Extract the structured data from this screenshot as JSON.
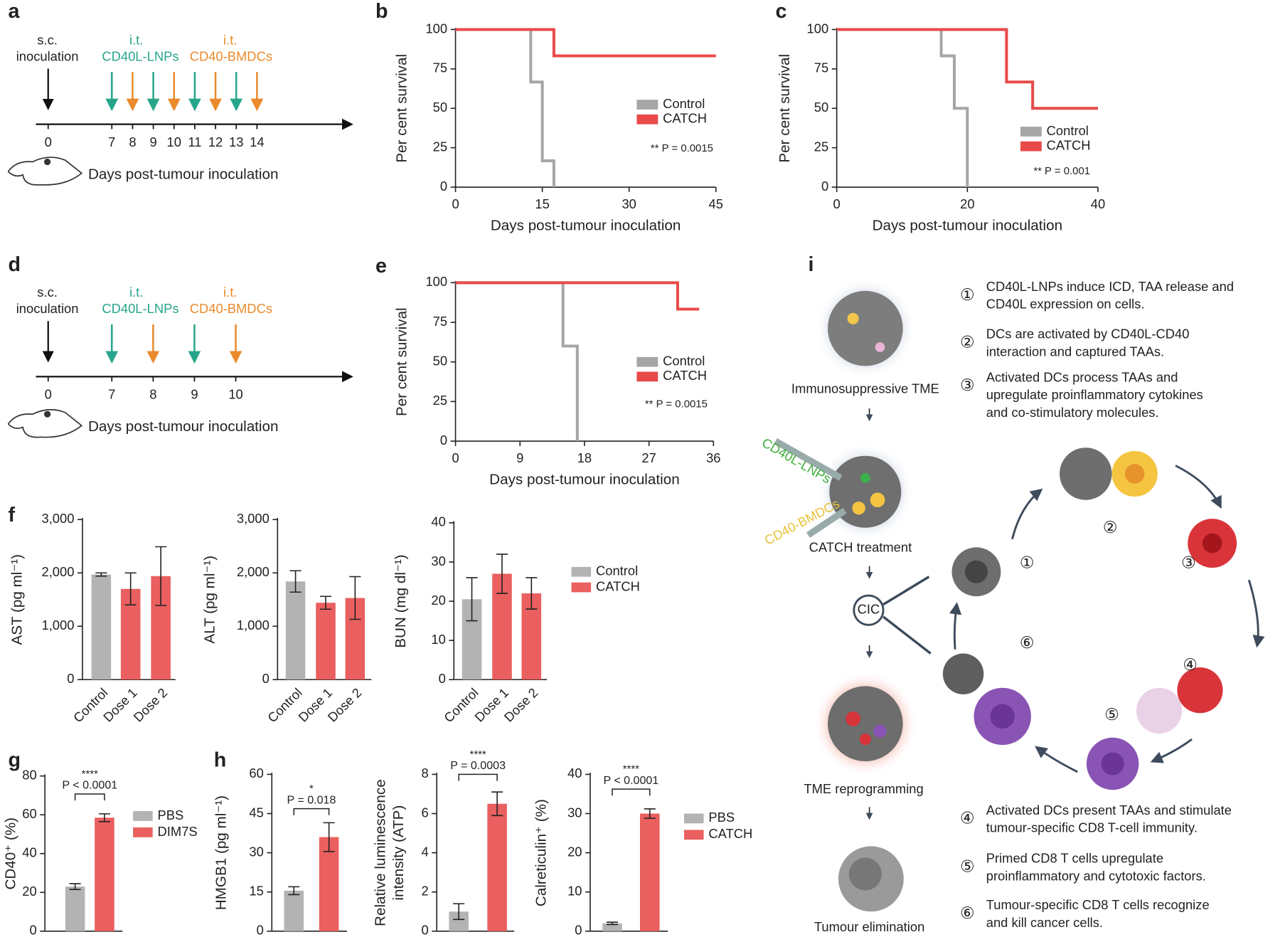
{
  "panel_labels": [
    "a",
    "b",
    "c",
    "d",
    "e",
    "f",
    "g",
    "h",
    "i"
  ],
  "timelines": [
    {
      "inoculation": [
        "s.c.",
        "inoculation"
      ],
      "groups": [
        {
          "route": "i.t.",
          "name": "CD40L-LNPs",
          "color": "#27a58b",
          "days": [
            7,
            9,
            11,
            13
          ]
        },
        {
          "route": "i.t.",
          "name": "CD40-BMDCs",
          "color": "#ea8a2c",
          "days": [
            8,
            10,
            12,
            14
          ]
        }
      ],
      "ticks": [
        0,
        7,
        8,
        9,
        10,
        11,
        12,
        13,
        14
      ],
      "axis_label": "Days post-tumour inoculation"
    },
    {
      "inoculation": [
        "s.c.",
        "inoculation"
      ],
      "groups": [
        {
          "route": "i.t.",
          "name": "CD40L-LNPs",
          "color": "#27a58b",
          "days": [
            7,
            9
          ]
        },
        {
          "route": "i.t.",
          "name": "CD40-BMDCs",
          "color": "#ea8a2c",
          "days": [
            8,
            10
          ]
        }
      ],
      "ticks": [
        0,
        7,
        8,
        9,
        10
      ],
      "axis_label": "Days post-tumour inoculation"
    }
  ],
  "chart_data": [
    {
      "type": "line",
      "x_label": "Days post-tumour inoculation",
      "y_label": "Per cent survival",
      "annotation": "** P = 0.0015",
      "xlim": [
        0,
        45
      ],
      "xticks": [
        0,
        15,
        30,
        45
      ],
      "ylim": [
        0,
        100
      ],
      "yticks": [
        0,
        25,
        50,
        75,
        100
      ],
      "series": [
        {
          "name": "Control",
          "color": "#a6a6a6",
          "x": [
            0,
            13,
            13,
            15,
            15,
            17,
            17
          ],
          "values": [
            100,
            100,
            66.7,
            66.7,
            16.7,
            16.7,
            0
          ]
        },
        {
          "name": "CATCH",
          "color": "#e84a4a",
          "x": [
            0,
            17,
            17,
            45
          ],
          "values": [
            100,
            100,
            83.3,
            83.3
          ]
        }
      ]
    },
    {
      "type": "line",
      "x_label": "Days post-tumour inoculation",
      "y_label": "Per cent survival",
      "annotation": "** P = 0.001",
      "xlim": [
        0,
        40
      ],
      "xticks": [
        0,
        20,
        40
      ],
      "ylim": [
        0,
        100
      ],
      "yticks": [
        0,
        25,
        50,
        75,
        100
      ],
      "series": [
        {
          "name": "Control",
          "color": "#a6a6a6",
          "x": [
            0,
            16,
            16,
            18,
            18,
            20,
            20
          ],
          "values": [
            100,
            100,
            83.3,
            83.3,
            50,
            50,
            0
          ]
        },
        {
          "name": "CATCH",
          "color": "#e84a4a",
          "x": [
            0,
            26,
            26,
            30,
            30,
            40
          ],
          "values": [
            100,
            100,
            66.7,
            66.7,
            50,
            50
          ]
        }
      ]
    },
    {
      "type": "line",
      "x_label": "Days post-tumour inoculation",
      "y_label": "Per cent survival",
      "annotation": "** P = 0.0015",
      "xlim": [
        0,
        36
      ],
      "xticks": [
        0,
        9,
        18,
        27,
        36
      ],
      "ylim": [
        0,
        100
      ],
      "yticks": [
        0,
        25,
        50,
        75,
        100
      ],
      "series": [
        {
          "name": "Control",
          "color": "#a6a6a6",
          "x": [
            0,
            15,
            15,
            17,
            17
          ],
          "values": [
            100,
            100,
            60,
            60,
            0
          ]
        },
        {
          "name": "CATCH",
          "color": "#e84a4a",
          "x": [
            0,
            31,
            31,
            34
          ],
          "values": [
            100,
            100,
            83.3,
            83.3
          ]
        }
      ]
    },
    {
      "type": "bar",
      "y_label": "AST (pg ml⁻¹)",
      "categories": [
        "Control",
        "Dose 1",
        "Dose 2"
      ],
      "values": [
        1970,
        1700,
        1940
      ],
      "errors": [
        30,
        300,
        550
      ],
      "colors": [
        "#b3b3b3",
        "#ea5f5f",
        "#ea5f5f"
      ],
      "ylim": [
        0,
        3000
      ],
      "yticks": [
        0,
        {
          "value": 1000,
          "label": "1,000"
        },
        {
          "value": 2000,
          "label": "2,000"
        },
        {
          "value": 3000,
          "label": "3,000"
        }
      ]
    },
    {
      "type": "bar",
      "y_label": "ALT (pg ml⁻¹)",
      "categories": [
        "Control",
        "Dose 1",
        "Dose 2"
      ],
      "values": [
        1840,
        1440,
        1530
      ],
      "errors": [
        200,
        120,
        400
      ],
      "colors": [
        "#b3b3b3",
        "#ea5f5f",
        "#ea5f5f"
      ],
      "ylim": [
        0,
        3000
      ],
      "yticks": [
        0,
        {
          "value": 1000,
          "label": "1,000"
        },
        {
          "value": 2000,
          "label": "2,000"
        },
        {
          "value": 3000,
          "label": "3,000"
        }
      ]
    },
    {
      "type": "bar",
      "y_label": "BUN (mg dl⁻¹)",
      "categories": [
        "Control",
        "Dose 1",
        "Dose 2"
      ],
      "values": [
        20.5,
        27,
        22
      ],
      "errors": [
        5.5,
        5,
        4
      ],
      "colors": [
        "#b3b3b3",
        "#ea5f5f",
        "#ea5f5f"
      ],
      "ylim": [
        0,
        40
      ],
      "yticks": [
        0,
        10,
        20,
        30,
        40
      ],
      "legend": [
        {
          "name": "Control",
          "color": "#b3b3b3"
        },
        {
          "name": "CATCH",
          "color": "#ea5f5f"
        }
      ]
    },
    {
      "type": "bar",
      "y_label": "CD40⁺ (%)",
      "ylim": [
        0,
        80
      ],
      "yticks": [
        0,
        20,
        40,
        60,
        80
      ],
      "significance": {
        "stars": "****",
        "label": "P < 0.0001"
      },
      "series": [
        {
          "name": "PBS",
          "color": "#b3b3b3",
          "values": [
            23
          ],
          "errors": [
            1.5
          ]
        },
        {
          "name": "DIM7S",
          "color": "#ea5f5f",
          "values": [
            58.5
          ],
          "errors": [
            2
          ]
        }
      ]
    },
    {
      "type": "bar",
      "y_label": "HMGB1 (pg ml⁻¹)",
      "ylim": [
        0,
        60
      ],
      "yticks": [
        0,
        15,
        30,
        45,
        60
      ],
      "significance": {
        "stars": "*",
        "label": "P = 0.018"
      },
      "series": [
        {
          "color": "#b3b3b3",
          "values": [
            15.5
          ],
          "errors": [
            1.5
          ]
        },
        {
          "color": "#ea5f5f",
          "values": [
            36
          ],
          "errors": [
            5.5
          ]
        }
      ]
    },
    {
      "type": "bar",
      "y_label": [
        "Relative luminescence",
        "intensity (ATP)"
      ],
      "ylim": [
        0,
        8
      ],
      "yticks": [
        0,
        2,
        4,
        6,
        8
      ],
      "significance": {
        "stars": "****",
        "label": "P = 0.0003"
      },
      "series": [
        {
          "color": "#b3b3b3",
          "values": [
            1.0
          ],
          "errors": [
            0.4
          ]
        },
        {
          "color": "#ea5f5f",
          "values": [
            6.5
          ],
          "errors": [
            0.6
          ]
        }
      ]
    },
    {
      "type": "bar",
      "y_label": "Calreticulin⁺ (%)",
      "ylim": [
        0,
        40
      ],
      "yticks": [
        0,
        10,
        20,
        30,
        40
      ],
      "significance": {
        "stars": "****",
        "label": "P < 0.0001"
      },
      "series": [
        {
          "name": "PBS",
          "color": "#b3b3b3",
          "values": [
            2
          ],
          "errors": [
            0.3
          ]
        },
        {
          "name": "CATCH",
          "color": "#ea5f5f",
          "values": [
            30
          ],
          "errors": [
            1.2
          ]
        }
      ]
    }
  ],
  "diagram": {
    "nodes": [
      "Immunosuppressive TME",
      "CATCH treatment",
      "TME reprogramming",
      "Tumour elimination",
      "CIC"
    ],
    "injections": [
      "CD40L-LNPs",
      "CD40-BMDCs"
    ],
    "cycle_numbers": [
      "①",
      "②",
      "③",
      "④",
      "⑤",
      "⑥"
    ],
    "steps": [
      {
        "number": "①",
        "lines": [
          "CD40L-LNPs induce ICD, TAA release and",
          "CD40L expression on cells."
        ]
      },
      {
        "number": "②",
        "lines": [
          "DCs are activated by CD40L-CD40",
          "interaction and captured TAAs."
        ]
      },
      {
        "number": "③",
        "lines": [
          "Activated DCs process TAAs and",
          "upregulate proinflammatory cytokines",
          "and co-stimulatory molecules."
        ]
      },
      {
        "number": "④",
        "lines": [
          "Activated DCs present TAAs and stimulate",
          "tumour-specific CD8 T-cell immunity."
        ]
      },
      {
        "number": "⑤",
        "lines": [
          "Primed CD8 T cells upregulate",
          "proinflammatory and cytotoxic factors."
        ]
      },
      {
        "number": "⑥",
        "lines": [
          "Tumour-specific CD8 T cells recognize",
          "and kill cancer cells."
        ]
      }
    ]
  }
}
